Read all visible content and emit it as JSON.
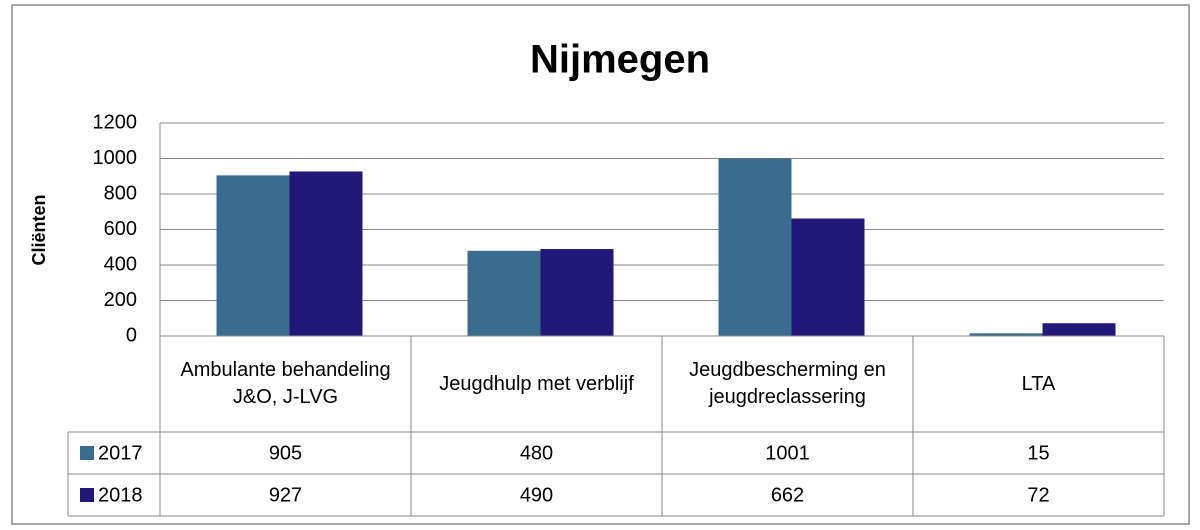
{
  "chart_data": {
    "type": "bar",
    "title": "Nijmegen",
    "y_label": "Cliënten",
    "categories": [
      "Ambulante behandeling J&O, J-LVG",
      "Jeugdhulp met verblijf",
      "Jeugdbescherming en jeugdreclassering",
      "LTA"
    ],
    "series": [
      {
        "name": "2017",
        "color": "#3b6b8f",
        "values": [
          905,
          480,
          1001,
          15
        ]
      },
      {
        "name": "2018",
        "color": "#22187a",
        "values": [
          927,
          490,
          662,
          72
        ]
      }
    ],
    "ylim": [
      0,
      1200
    ],
    "yticks": [
      0,
      200,
      400,
      600,
      800,
      1000,
      1200
    ],
    "grid": true,
    "data_table": true
  }
}
